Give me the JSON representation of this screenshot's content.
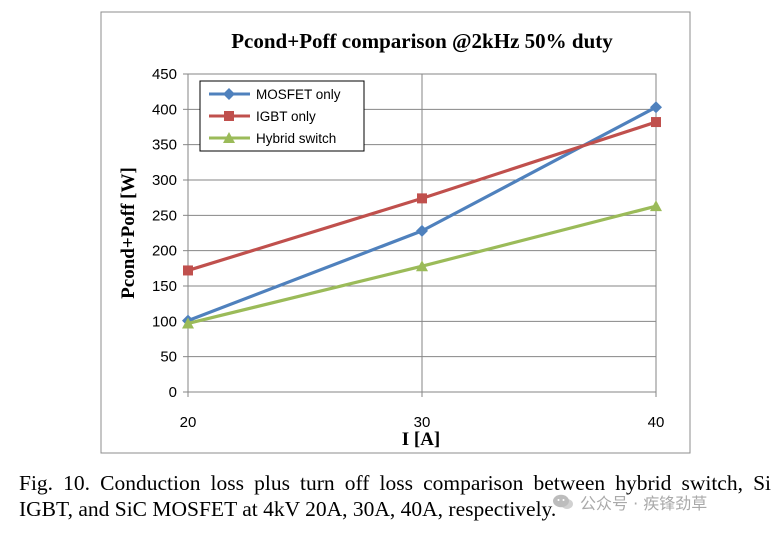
{
  "chart_data": {
    "type": "line",
    "title": "Pcond+Poff comparison @2kHz 50% duty",
    "xlabel": "I [A]",
    "ylabel": "Pcond+Poff [W]",
    "x": [
      20,
      30,
      40
    ],
    "xticks": [
      "20",
      "30",
      "40"
    ],
    "xlim": [
      20,
      40
    ],
    "ylim": [
      0,
      450
    ],
    "yticks": [
      "0",
      "50",
      "100",
      "150",
      "200",
      "250",
      "300",
      "350",
      "400",
      "450"
    ],
    "grid": true,
    "legend_position": "top-left",
    "series": [
      {
        "name": "MOSFET only",
        "values": [
          101,
          228,
          403
        ],
        "color": "#4f81bd",
        "marker": "diamond"
      },
      {
        "name": "IGBT only",
        "values": [
          172,
          274,
          382
        ],
        "color": "#c0504d",
        "marker": "square"
      },
      {
        "name": "Hybrid switch",
        "values": [
          97,
          178,
          263
        ],
        "color": "#9bbb59",
        "marker": "triangle"
      }
    ]
  },
  "caption": {
    "text": "Fig. 10. Conduction loss plus turn off loss comparison between hybrid switch, Si IGBT, and SiC MOSFET at 4kV 20A, 30A, 40A, respectively."
  },
  "watermark": {
    "text": "公众号 · 疾锋劲草"
  }
}
